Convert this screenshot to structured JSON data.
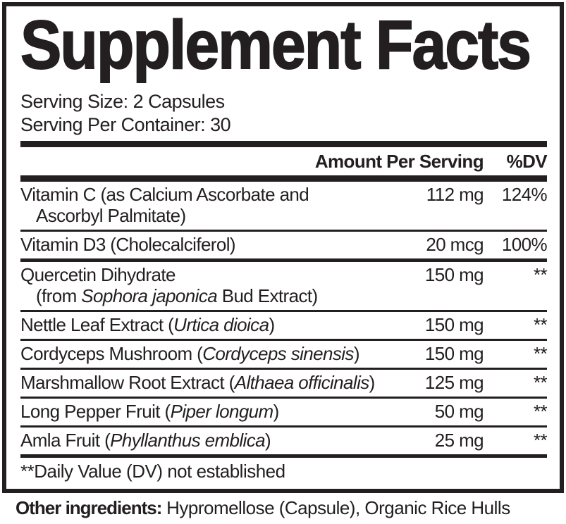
{
  "title": "Supplement Facts",
  "serving": {
    "size": "Serving Size: 2 Capsules",
    "per_container": "Serving Per Container: 30"
  },
  "header": {
    "amount": "Amount Per Serving",
    "dv": "%DV"
  },
  "rows": [
    {
      "line1": {
        "pre": "Vitamin C (as Calcium Ascorbate and",
        "italic": "",
        "post": ""
      },
      "line2": {
        "pre": "Ascorbyl Palmitate)",
        "italic": "",
        "post": ""
      },
      "amount": "112 mg",
      "dv": "124%"
    },
    {
      "line1": {
        "pre": "Vitamin D3 (Cholecalciferol)",
        "italic": "",
        "post": ""
      },
      "amount": "20 mcg",
      "dv": "100%"
    },
    {
      "line1": {
        "pre": "Quercetin Dihydrate",
        "italic": "",
        "post": ""
      },
      "line2": {
        "pre": "(from ",
        "italic": "Sophora japonica",
        "post": " Bud Extract)"
      },
      "amount": "150 mg",
      "dv": "**"
    },
    {
      "line1": {
        "pre": "Nettle Leaf Extract (",
        "italic": "Urtica dioica",
        "post": ")"
      },
      "amount": "150 mg",
      "dv": "**"
    },
    {
      "line1": {
        "pre": "Cordyceps Mushroom (",
        "italic": "Cordyceps sinensis",
        "post": ")"
      },
      "amount": "150 mg",
      "dv": "**"
    },
    {
      "line1": {
        "pre": "Marshmallow Root Extract (",
        "italic": "Althaea officinalis",
        "post": ")"
      },
      "amount": "125 mg",
      "dv": "**"
    },
    {
      "line1": {
        "pre": "Long Pepper Fruit (",
        "italic": "Piper longum",
        "post": ")"
      },
      "amount": "50 mg",
      "dv": "**"
    },
    {
      "line1": {
        "pre": "Amla Fruit (",
        "italic": "Phyllanthus emblica",
        "post": ")"
      },
      "amount": "25 mg",
      "dv": "**"
    }
  ],
  "footnote": "**Daily Value (DV) not established",
  "other_ingredients": {
    "label": "Other ingredients:",
    "value": " Hypromellose (Capsule), Organic Rice Hulls"
  },
  "colors": {
    "ink": "#231f20",
    "background": "#ffffff"
  }
}
